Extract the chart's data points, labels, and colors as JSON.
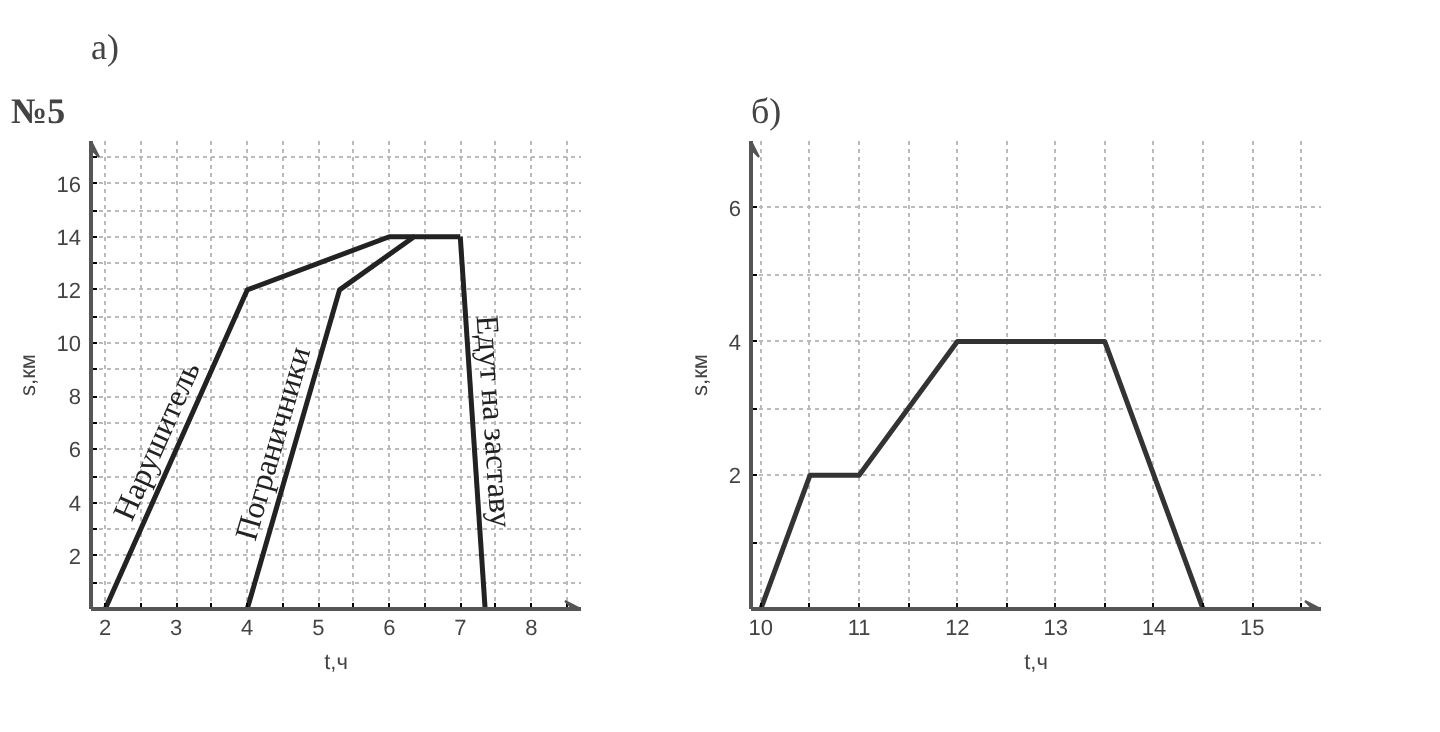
{
  "chart_data": [
    {
      "type": "line",
      "title": "а)",
      "annotations": [
        "№5"
      ],
      "xlabel": "t,ч",
      "ylabel": "s,км",
      "xlim": [
        1.8,
        8.7
      ],
      "ylim": [
        0,
        17.6
      ],
      "xticks": [
        2,
        {
          "value": 2.5,
          "label": null
        },
        3,
        {
          "value": 3.5,
          "label": null
        },
        4,
        {
          "value": 4.5,
          "label": null
        },
        5,
        {
          "value": 5.5,
          "label": null
        },
        6,
        {
          "value": 6.5,
          "label": null
        },
        7,
        {
          "value": 7.5,
          "label": null
        },
        8,
        {
          "value": 8.5,
          "label": null
        }
      ],
      "yticks": [
        {
          "value": 1,
          "label": null
        },
        2,
        {
          "value": 3,
          "label": null
        },
        4,
        {
          "value": 5,
          "label": null
        },
        6,
        {
          "value": 7,
          "label": null
        },
        8,
        {
          "value": 9,
          "label": null
        },
        10,
        {
          "value": 11,
          "label": null
        },
        12,
        {
          "value": 13,
          "label": null
        },
        14,
        {
          "value": 15,
          "label": null
        },
        16,
        {
          "value": 17,
          "label": null
        }
      ],
      "grid": true,
      "marker": "none",
      "line_style": "solid",
      "series": [
        {
          "name": "Нарушитель",
          "color": "#222222",
          "x": [
            2,
            4,
            6,
            6.35
          ],
          "values": [
            0,
            12,
            14,
            14
          ]
        },
        {
          "name": "Пограничники",
          "color": "#222222",
          "x": [
            4,
            5.3,
            6.35,
            7
          ],
          "values": [
            0,
            12,
            14,
            14
          ]
        },
        {
          "name": "Едут на заставу",
          "color": "#222222",
          "x": [
            7,
            7.35
          ],
          "values": [
            14,
            0
          ]
        }
      ]
    },
    {
      "type": "line",
      "title": "б)",
      "xlabel": "t,ч",
      "ylabel": "s,км",
      "xlim": [
        9.9,
        15.7
      ],
      "ylim": [
        0,
        7
      ],
      "xticks": [
        10,
        {
          "value": 10.5,
          "label": null
        },
        11,
        {
          "value": 11.5,
          "label": null
        },
        12,
        {
          "value": 12.5,
          "label": null
        },
        13,
        {
          "value": 13.5,
          "label": null
        },
        14,
        {
          "value": 14.5,
          "label": null
        },
        15,
        {
          "value": 15.5,
          "label": null
        }
      ],
      "yticks": [
        {
          "value": 1,
          "label": null
        },
        2,
        {
          "value": 3,
          "label": null
        },
        4,
        {
          "value": 5,
          "label": null
        },
        6
      ],
      "grid": true,
      "marker": "none",
      "line_style": "solid",
      "series": [
        {
          "color": "#333333",
          "x": [
            10,
            10.5,
            11,
            12,
            13.5,
            14.5
          ],
          "values": [
            0,
            2,
            2,
            4,
            4,
            0
          ]
        }
      ]
    }
  ]
}
